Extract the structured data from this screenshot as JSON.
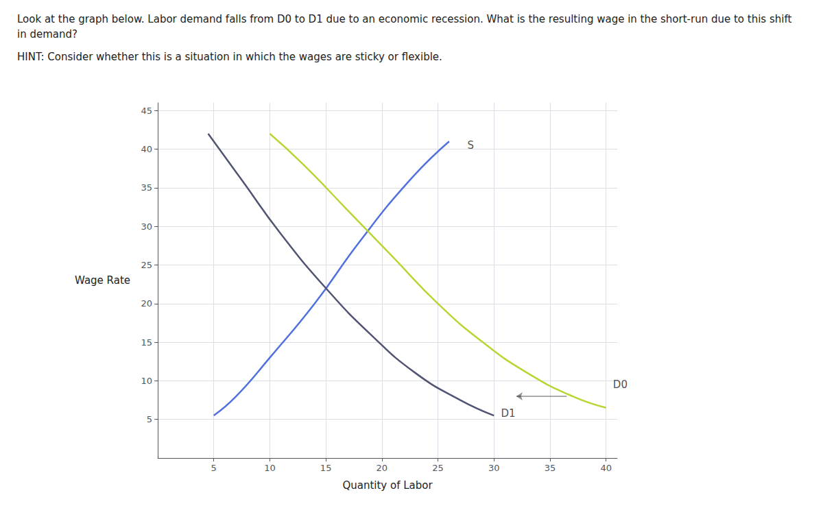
{
  "chart_data": {
    "type": "line",
    "title": "Look at the graph below. Labor demand falls from D0 to D1 due to an economic recession. What is the resulting wage in the short-run due to this shift in demand?",
    "subtitle": "HINT: Consider whether this is a situation in which the wages are sticky or flexible.",
    "xlabel": "Quantity of Labor",
    "ylabel": "Wage Rate",
    "xlim": [
      0,
      41
    ],
    "ylim": [
      0,
      46
    ],
    "xticks": [
      5,
      10,
      15,
      20,
      25,
      30,
      35,
      40
    ],
    "yticks": [
      5,
      10,
      15,
      20,
      25,
      30,
      35,
      40,
      45
    ],
    "grid": true,
    "series": [
      {
        "x": [
          5.0,
          7.0,
          10.0,
          14.0,
          18.0,
          22.5,
          26.0
        ],
        "values": [
          5.5,
          8.0,
          13.0,
          20.0,
          28.0,
          36.0,
          41.0
        ]
      },
      {
        "x": [
          10.0,
          13.0,
          17.0,
          21.0,
          25.0,
          29.0,
          33.0,
          37.0,
          40.0
        ],
        "values": [
          42.0,
          38.0,
          32.0,
          26.0,
          20.0,
          15.0,
          11.0,
          8.0,
          6.5
        ]
      },
      {
        "x": [
          4.5,
          7.5,
          11.0,
          15.0,
          19.0,
          23.0,
          27.0,
          30.0
        ],
        "values": [
          42.0,
          36.0,
          29.0,
          22.0,
          16.0,
          11.0,
          7.5,
          5.5
        ]
      }
    ],
    "annotations": [
      {
        "text": "S",
        "x": 27.5,
        "y": 40.5
      },
      {
        "text": "D0",
        "x": 40.5,
        "y": 9.5
      },
      {
        "text": "D1",
        "x": 30.5,
        "y": 5.8
      }
    ],
    "arrows": [
      {
        "x": [
          36.5,
          32.0
        ],
        "y": [
          8.0,
          8.0
        ]
      }
    ]
  }
}
